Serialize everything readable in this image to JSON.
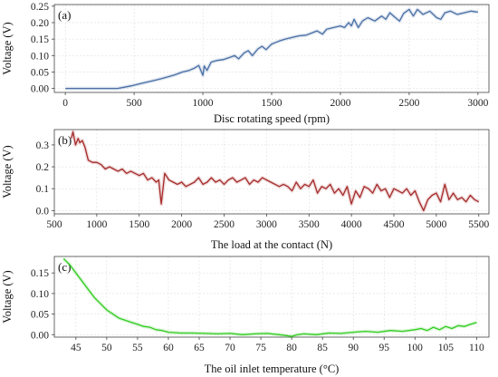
{
  "chart_data": [
    {
      "type": "line",
      "panel_label": "(a)",
      "xlabel": "Disc rotating speed (rpm)",
      "ylabel": "Voltage (V)",
      "xlim": [
        -80,
        3080
      ],
      "ylim": [
        -0.012,
        0.255
      ],
      "xticks": [
        0,
        500,
        1000,
        1500,
        2000,
        2500,
        3000
      ],
      "yticks": [
        0.0,
        0.05,
        0.1,
        0.15,
        0.2,
        0.25
      ],
      "ytick_labels": [
        "0.00",
        "0.05",
        "0.10",
        "0.15",
        "0.20",
        "0.25"
      ],
      "grid": true,
      "color": "#4a6fa5",
      "series": [
        {
          "x": [
            0,
            100,
            200,
            300,
            380,
            430,
            480,
            520,
            560,
            600,
            650,
            700,
            750,
            800,
            850,
            900,
            940,
            970,
            1000,
            1010,
            1030,
            1060,
            1100,
            1150,
            1200,
            1230,
            1260,
            1300,
            1330,
            1360,
            1400,
            1430,
            1460,
            1500,
            1530,
            1560,
            1600,
            1650,
            1700,
            1750,
            1800,
            1830,
            1870,
            1900,
            1950,
            2000,
            2030,
            2060,
            2080,
            2100,
            2130,
            2160,
            2200,
            2250,
            2300,
            2330,
            2360,
            2400,
            2430,
            2460,
            2500,
            2530,
            2560,
            2600,
            2650,
            2700,
            2730,
            2760,
            2800,
            2850,
            2900,
            2950,
            3000
          ],
          "y": [
            0.0,
            0.0,
            0.0,
            0.0,
            0.0,
            0.004,
            0.008,
            0.012,
            0.016,
            0.02,
            0.025,
            0.03,
            0.036,
            0.042,
            0.05,
            0.055,
            0.062,
            0.07,
            0.04,
            0.068,
            0.055,
            0.08,
            0.085,
            0.088,
            0.095,
            0.1,
            0.09,
            0.108,
            0.115,
            0.1,
            0.12,
            0.128,
            0.118,
            0.135,
            0.14,
            0.145,
            0.15,
            0.155,
            0.16,
            0.162,
            0.17,
            0.175,
            0.165,
            0.18,
            0.185,
            0.19,
            0.185,
            0.2,
            0.19,
            0.21,
            0.185,
            0.205,
            0.215,
            0.205,
            0.22,
            0.21,
            0.23,
            0.215,
            0.205,
            0.228,
            0.24,
            0.22,
            0.24,
            0.225,
            0.235,
            0.215,
            0.21,
            0.23,
            0.235,
            0.225,
            0.23,
            0.235,
            0.232
          ]
        }
      ]
    },
    {
      "type": "line",
      "panel_label": "(b)",
      "xlabel": "The load at the contact (N)",
      "ylabel": "Voltage (V)",
      "xlim": [
        500,
        5620
      ],
      "ylim": [
        -0.015,
        0.37
      ],
      "xticks": [
        500,
        1000,
        1500,
        2000,
        2500,
        3000,
        3500,
        4000,
        4500,
        5000,
        5500
      ],
      "yticks": [
        0.0,
        0.1,
        0.2,
        0.3
      ],
      "ytick_labels": [
        "0.0",
        "0.1",
        "0.2",
        "0.3"
      ],
      "grid": true,
      "color": "#a52a2a",
      "series": [
        {
          "x": [
            700,
            720,
            750,
            780,
            800,
            830,
            860,
            900,
            950,
            1000,
            1050,
            1100,
            1150,
            1200,
            1250,
            1300,
            1350,
            1400,
            1450,
            1500,
            1550,
            1600,
            1650,
            1700,
            1730,
            1760,
            1800,
            1850,
            1900,
            1950,
            2000,
            2050,
            2100,
            2150,
            2200,
            2250,
            2300,
            2350,
            2400,
            2450,
            2500,
            2550,
            2600,
            2650,
            2700,
            2750,
            2800,
            2850,
            2900,
            2950,
            3000,
            3050,
            3100,
            3150,
            3200,
            3250,
            3300,
            3350,
            3400,
            3450,
            3500,
            3550,
            3600,
            3650,
            3700,
            3750,
            3800,
            3850,
            3900,
            3950,
            4000,
            4050,
            4100,
            4150,
            4200,
            4250,
            4300,
            4350,
            4400,
            4450,
            4500,
            4550,
            4600,
            4650,
            4700,
            4750,
            4800,
            4850,
            4900,
            4950,
            5000,
            5050,
            5100,
            5150,
            5200,
            5250,
            5300,
            5350,
            5400,
            5450,
            5500
          ],
          "y": [
            0.33,
            0.36,
            0.3,
            0.33,
            0.31,
            0.32,
            0.29,
            0.23,
            0.22,
            0.22,
            0.21,
            0.19,
            0.2,
            0.19,
            0.18,
            0.19,
            0.17,
            0.18,
            0.17,
            0.16,
            0.17,
            0.14,
            0.15,
            0.13,
            0.14,
            0.03,
            0.17,
            0.14,
            0.13,
            0.12,
            0.13,
            0.11,
            0.12,
            0.13,
            0.15,
            0.12,
            0.13,
            0.15,
            0.13,
            0.14,
            0.12,
            0.14,
            0.15,
            0.13,
            0.14,
            0.15,
            0.12,
            0.14,
            0.13,
            0.15,
            0.14,
            0.13,
            0.12,
            0.11,
            0.12,
            0.11,
            0.09,
            0.13,
            0.1,
            0.12,
            0.11,
            0.14,
            0.08,
            0.11,
            0.1,
            0.12,
            0.08,
            0.1,
            0.07,
            0.11,
            0.03,
            0.09,
            0.06,
            0.11,
            0.1,
            0.08,
            0.12,
            0.09,
            0.1,
            0.06,
            0.1,
            0.09,
            0.08,
            0.1,
            0.07,
            0.09,
            0.04,
            0.0,
            0.05,
            0.07,
            0.08,
            0.04,
            0.12,
            0.05,
            0.08,
            0.05,
            0.06,
            0.04,
            0.07,
            0.05,
            0.04
          ]
        }
      ]
    },
    {
      "type": "line",
      "panel_label": "(c)",
      "xlabel": "The oil inlet temperature (°C)",
      "ylabel": "Voltage (V)",
      "xlim": [
        41.5,
        112
      ],
      "ylim": [
        -0.006,
        0.19
      ],
      "xticks": [
        45,
        50,
        55,
        60,
        65,
        70,
        75,
        80,
        85,
        90,
        95,
        100,
        105,
        110
      ],
      "yticks": [
        0.0,
        0.05,
        0.1,
        0.15
      ],
      "ytick_labels": [
        "0.00",
        "0.05",
        "0.10",
        "0.15"
      ],
      "grid": true,
      "color": "#33cc22",
      "series": [
        {
          "x": [
            43,
            44,
            45,
            46,
            47,
            48,
            49,
            50,
            51,
            52,
            53,
            54,
            55,
            56,
            57,
            58,
            59,
            60,
            62,
            64,
            66,
            68,
            70,
            72,
            74,
            76,
            78,
            79,
            80,
            81,
            82,
            84,
            86,
            88,
            90,
            92,
            94,
            96,
            98,
            100,
            101,
            102,
            103,
            104,
            105,
            106,
            107,
            108,
            109,
            110
          ],
          "y": [
            0.185,
            0.17,
            0.15,
            0.13,
            0.11,
            0.09,
            0.075,
            0.06,
            0.05,
            0.04,
            0.035,
            0.03,
            0.025,
            0.02,
            0.018,
            0.012,
            0.01,
            0.006,
            0.004,
            0.004,
            0.003,
            0.002,
            0.003,
            0.0,
            0.002,
            0.003,
            0.0,
            -0.002,
            -0.004,
            0.0,
            0.002,
            0.0,
            0.004,
            0.003,
            0.006,
            0.008,
            0.006,
            0.01,
            0.008,
            0.012,
            0.015,
            0.01,
            0.018,
            0.012,
            0.02,
            0.015,
            0.022,
            0.02,
            0.025,
            0.03
          ]
        }
      ]
    }
  ]
}
